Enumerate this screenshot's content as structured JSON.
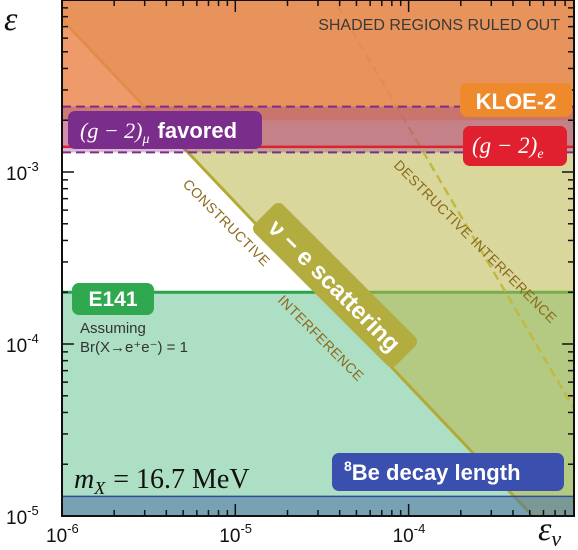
{
  "chart_data": {
    "type": "area",
    "title": "",
    "xlabel": "ε_ν",
    "ylabel": "ε_e",
    "x_scale": "log",
    "y_scale": "log",
    "xlim": [
      1e-06,
      0.0009
    ],
    "ylim": [
      1e-05,
      0.01
    ],
    "x_ticks": [
      {
        "value": 1e-06,
        "label": "10-6",
        "base": "10",
        "exp": "-6"
      },
      {
        "value": 1e-05,
        "label": "10-5",
        "base": "10",
        "exp": "-5"
      },
      {
        "value": 0.0001,
        "label": "10-4",
        "base": "10",
        "exp": "-4"
      }
    ],
    "y_ticks": [
      {
        "value": 1e-05,
        "label": "10-5",
        "base": "10",
        "exp": "-5"
      },
      {
        "value": 0.0001,
        "label": "10-4",
        "base": "10",
        "exp": "-4"
      },
      {
        "value": 0.001,
        "label": "10-3",
        "base": "10",
        "exp": "-3"
      }
    ],
    "grid": false,
    "note": "SHADED REGIONS RULED OUT",
    "regions": [
      {
        "name": "KLOE-2",
        "label": "KLOE-2",
        "kind": "excluded",
        "eps_e_min": 0.002
      },
      {
        "name": "(g-2)_mu favored",
        "label_math": "(g − 2)",
        "label_sub": "μ",
        "label_text": "favored",
        "kind": "favored_band",
        "eps_e_range": [
          0.0013,
          0.0024
        ]
      },
      {
        "name": "(g-2)_e",
        "label_math": "(g − 2)",
        "label_sub": "e",
        "kind": "excluded",
        "eps_e_min": 0.0014
      },
      {
        "name": "E141",
        "label": "E141",
        "kind": "excluded",
        "eps_e_max": 0.0002,
        "caveat_line1": "Assuming",
        "caveat_line2": "Br(X→e⁺e⁻) = 1"
      },
      {
        "name": "nu-e scattering",
        "label": "ν − e scattering",
        "kind": "excluded",
        "constructive_boundary": [
          [
            1.5e-06,
            0.005
          ],
          [
            0.00052,
            1e-05
          ]
        ],
        "destructive_boundary": [
          [
            3.9e-05,
            0.0092
          ],
          [
            0.0009,
            4.2e-05
          ]
        ]
      },
      {
        "name": "8Be decay length",
        "label_sup": "8",
        "label": "Be decay length",
        "kind": "excluded",
        "eps_e_max": 1.3e-05
      }
    ],
    "annotations": [
      {
        "text": "CONSTRUCTIVE",
        "region": "nu-e scattering"
      },
      {
        "text": "INTERFERENCE",
        "region": "nu-e scattering"
      },
      {
        "text": "DESTRUCTIVE INTERFERENCE",
        "region": "nu-e scattering"
      },
      {
        "text_math": "m",
        "sub": "X",
        "text": "= 16.7 MeV"
      }
    ],
    "colors": {
      "kloe": "#e8a06a",
      "kloe_label": "#ef8a2c",
      "g2mu": "#7b2d8b",
      "g2e": "#e0202e",
      "e141": "#5cbf8a",
      "e141_label": "#2fa84f",
      "nu_e": "#b9b64a",
      "be8_label": "#3b4fae"
    }
  }
}
